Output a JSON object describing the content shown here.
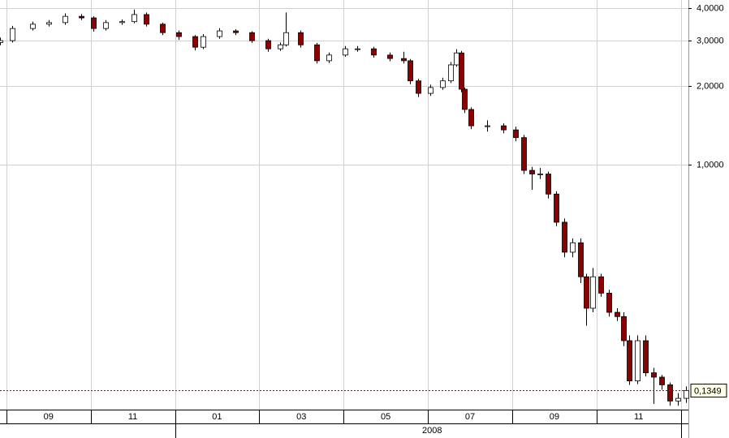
{
  "chart_data": {
    "type": "candlestick",
    "x": [
      8.85,
      9.13,
      9.62,
      10.0,
      10.39,
      10.77,
      11.06,
      11.35,
      11.74,
      12.03,
      12.31,
      12.7,
      13.08,
      13.47,
      13.66,
      14.05,
      14.43,
      14.82,
      15.2,
      15.49,
      15.63,
      15.97,
      16.36,
      16.65,
      17.03,
      17.32,
      17.71,
      18.09,
      18.42,
      18.58,
      18.77,
      19.06,
      19.35,
      19.54,
      19.67,
      19.79,
      19.86,
      20.02,
      20.41,
      20.79,
      21.08,
      21.27,
      21.47,
      21.66,
      21.85,
      22.05,
      22.24,
      22.43,
      22.62,
      22.76,
      22.91,
      23.1,
      23.3,
      23.49,
      23.64,
      23.78,
      23.97,
      24.16,
      24.36,
      24.55,
      24.74,
      24.93,
      25.13
    ],
    "open": [
      2.95,
      3.0,
      3.34,
      3.47,
      3.52,
      3.72,
      3.67,
      3.34,
      3.52,
      3.55,
      3.78,
      3.47,
      3.22,
      3.11,
      2.83,
      3.11,
      3.27,
      3.22,
      3.0,
      2.79,
      2.89,
      3.22,
      2.89,
      2.51,
      2.64,
      2.79,
      2.79,
      2.64,
      2.56,
      2.51,
      2.1,
      1.88,
      1.98,
      2.1,
      2.42,
      2.69,
      1.95,
      1.63,
      1.41,
      1.41,
      1.36,
      1.27,
      0.95,
      0.92,
      0.92,
      0.77,
      0.6,
      0.46,
      0.5,
      0.37,
      0.28,
      0.37,
      0.32,
      0.27,
      0.26,
      0.21,
      0.147,
      0.21,
      0.158,
      0.152,
      0.142,
      0.123,
      0.126
    ],
    "high": [
      3.08,
      3.42,
      3.55,
      3.6,
      3.82,
      3.8,
      3.72,
      3.6,
      3.62,
      3.95,
      3.85,
      3.52,
      3.28,
      3.15,
      3.18,
      3.35,
      3.32,
      3.26,
      3.05,
      2.95,
      3.85,
      3.28,
      2.94,
      2.7,
      2.86,
      2.86,
      2.84,
      2.7,
      2.72,
      2.55,
      2.14,
      2.03,
      2.16,
      2.48,
      2.78,
      2.74,
      1.98,
      1.66,
      1.48,
      1.44,
      1.4,
      1.3,
      0.98,
      0.97,
      0.94,
      0.79,
      0.62,
      0.52,
      0.52,
      0.38,
      0.4,
      0.38,
      0.33,
      0.28,
      0.27,
      0.22,
      0.22,
      0.22,
      0.165,
      0.155,
      0.145,
      0.132,
      0.14
    ],
    "low": [
      2.88,
      2.95,
      3.28,
      3.4,
      3.45,
      3.6,
      3.25,
      3.28,
      3.45,
      3.5,
      3.4,
      3.15,
      3.02,
      2.75,
      2.78,
      3.05,
      3.15,
      2.94,
      2.72,
      2.74,
      2.85,
      2.82,
      2.45,
      2.46,
      2.6,
      2.72,
      2.58,
      2.5,
      2.45,
      2.04,
      1.82,
      1.84,
      1.94,
      2.06,
      2.38,
      1.9,
      1.58,
      1.37,
      1.34,
      1.32,
      1.23,
      0.92,
      0.8,
      0.88,
      0.74,
      0.58,
      0.44,
      0.44,
      0.35,
      0.24,
      0.27,
      0.31,
      0.26,
      0.25,
      0.2,
      0.142,
      0.143,
      0.153,
      0.12,
      0.136,
      0.118,
      0.118,
      0.121
    ],
    "close": [
      3.0,
      3.34,
      3.47,
      3.52,
      3.72,
      3.67,
      3.34,
      3.52,
      3.55,
      3.78,
      3.47,
      3.22,
      3.11,
      2.83,
      3.11,
      3.27,
      3.22,
      3.0,
      2.79,
      2.89,
      3.22,
      2.89,
      2.51,
      2.64,
      2.79,
      2.79,
      2.64,
      2.56,
      2.51,
      2.1,
      1.88,
      1.98,
      2.1,
      2.42,
      2.69,
      1.95,
      1.63,
      1.41,
      1.41,
      1.36,
      1.27,
      0.95,
      0.92,
      0.92,
      0.77,
      0.6,
      0.46,
      0.5,
      0.37,
      0.28,
      0.37,
      0.32,
      0.27,
      0.26,
      0.21,
      0.147,
      0.21,
      0.158,
      0.152,
      0.142,
      0.123,
      0.126,
      0.135
    ],
    "up_color": "#ffffff",
    "down_color": "#8b0000",
    "log_scale": true,
    "ylim": [
      0.114,
      4.3
    ],
    "yticks": [
      {
        "value": 4,
        "label": "4,0000"
      },
      {
        "value": 3,
        "label": "3,0000"
      },
      {
        "value": 2,
        "label": "2,0000"
      },
      {
        "value": 1,
        "label": "1,0000"
      }
    ],
    "xlim": [
      8.85,
      25.18
    ],
    "xticks": [
      {
        "value": 10,
        "label": "09"
      },
      {
        "value": 12,
        "label": "11"
      },
      {
        "value": 14,
        "label": "01"
      },
      {
        "value": 16,
        "label": "03"
      },
      {
        "value": 18,
        "label": "05"
      },
      {
        "value": 20,
        "label": "07"
      },
      {
        "value": 22,
        "label": "09"
      },
      {
        "value": 24,
        "label": "11"
      }
    ],
    "year_ticks": [
      {
        "value": 19.1,
        "label": "2008"
      }
    ],
    "xgrid": [
      9,
      11,
      13,
      15,
      17,
      19,
      21,
      23,
      25
    ],
    "last_price": {
      "value": 0.1349,
      "label": "0,1349"
    },
    "last_price_color": "#e00000",
    "grid": true
  }
}
